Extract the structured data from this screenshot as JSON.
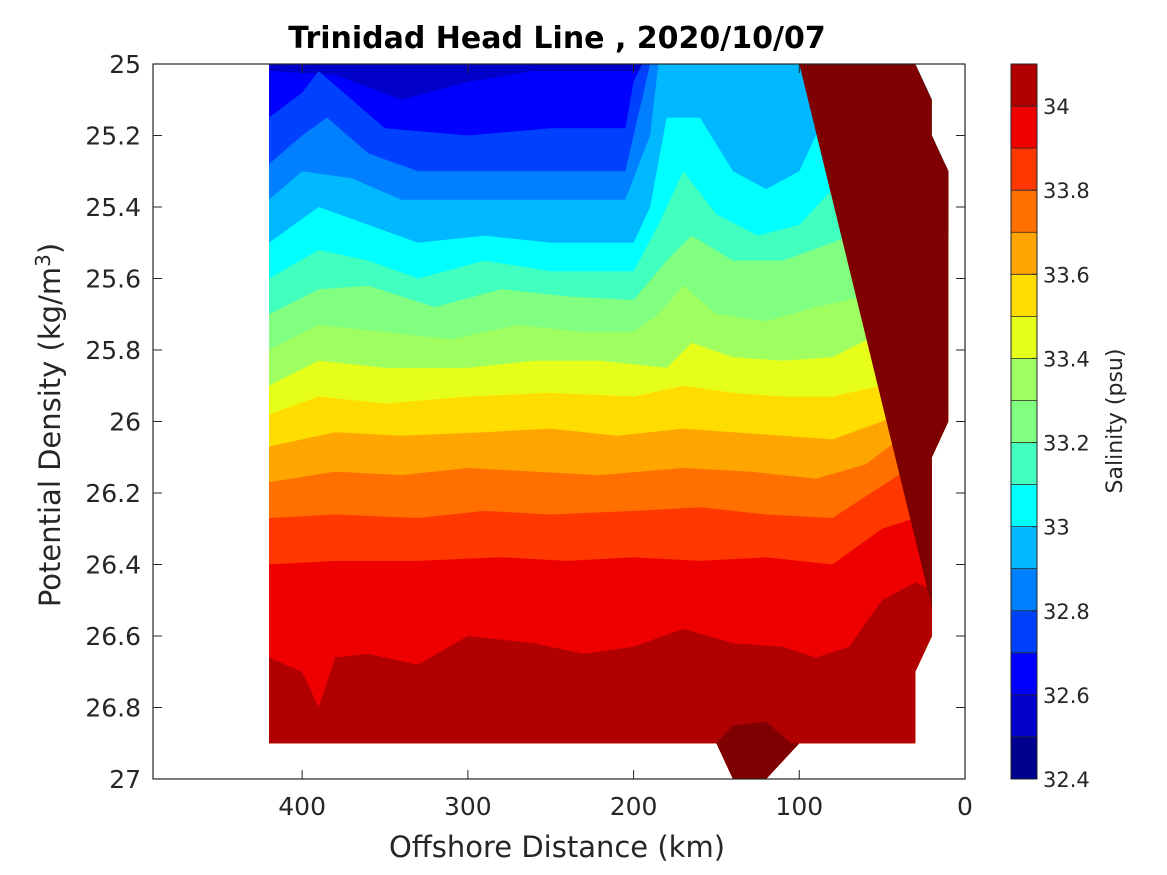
{
  "chart_data": {
    "type": "contour",
    "title": "Trinidad Head Line , 2020/10/07",
    "xlabel": "Offshore Distance (km)",
    "ylabel": "Potential Density (kg/m",
    "ylabel_superscript": "3",
    "ylabel_suffix": ")",
    "xlim": [
      490,
      0
    ],
    "xaxis_reversed": true,
    "ylim": [
      25,
      27
    ],
    "yaxis_reversed": true,
    "x_ticks": [
      400,
      300,
      200,
      100,
      0
    ],
    "x_tick_labels": [
      "400",
      "300",
      "200",
      "100",
      "0"
    ],
    "y_ticks": [
      25,
      25.2,
      25.4,
      25.6,
      25.8,
      26,
      26.2,
      26.4,
      26.6,
      26.8,
      27
    ],
    "y_tick_labels": [
      "25",
      "25.2",
      "25.4",
      "25.6",
      "25.8",
      "26",
      "26.2",
      "26.4",
      "26.6",
      "26.8",
      "27"
    ],
    "grid": false,
    "colorbar": {
      "label": "Salinity (psu)",
      "range": [
        32.4,
        34.1
      ],
      "levels": [
        32.4,
        32.5,
        32.6,
        32.7,
        32.8,
        32.9,
        33.0,
        33.1,
        33.2,
        33.3,
        33.4,
        33.5,
        33.6,
        33.7,
        33.8,
        33.9,
        34.0,
        34.1
      ],
      "colors": [
        "#00008f",
        "#0000c8",
        "#0000ff",
        "#0040ff",
        "#0080ff",
        "#00b8ff",
        "#00ffff",
        "#40ffbf",
        "#80ff80",
        "#a0ff60",
        "#e6ff1a",
        "#ffdd00",
        "#ffa500",
        "#ff7000",
        "#ff3800",
        "#ee0000",
        "#b00000",
        "#7f0000"
      ],
      "tick_values": [
        32.4,
        32.6,
        32.8,
        33,
        33.2,
        33.4,
        33.6,
        33.8,
        34
      ],
      "tick_labels": [
        "32.4",
        "32.6",
        "32.8",
        "33",
        "33.2",
        "33.4",
        "33.6",
        "33.8",
        "34"
      ]
    },
    "data_extent_km": {
      "offshore_edge": 420,
      "shore_edge_top": 30,
      "shore_edge_bottom": 30,
      "max_density": 26.9
    },
    "contour_lines": [
      {
        "level": 32.6,
        "points": [
          [
            420,
            25.02
          ],
          [
            380,
            25.03
          ],
          [
            340,
            25.1
          ],
          [
            300,
            25.05
          ],
          [
            260,
            25.02
          ],
          [
            225,
            25.02
          ]
        ]
      },
      {
        "level": 32.7,
        "points": [
          [
            420,
            25.15
          ],
          [
            400,
            25.08
          ],
          [
            390,
            25.02
          ],
          [
            370,
            25.1
          ],
          [
            350,
            25.18
          ],
          [
            300,
            25.2
          ],
          [
            250,
            25.18
          ],
          [
            205,
            25.18
          ],
          [
            200,
            25.05
          ],
          [
            195,
            25.0
          ]
        ]
      },
      {
        "level": 32.8,
        "points": [
          [
            420,
            25.28
          ],
          [
            400,
            25.2
          ],
          [
            385,
            25.15
          ],
          [
            360,
            25.25
          ],
          [
            330,
            25.3
          ],
          [
            300,
            25.3
          ],
          [
            250,
            25.3
          ],
          [
            205,
            25.3
          ],
          [
            195,
            25.1
          ],
          [
            190,
            25.0
          ]
        ]
      },
      {
        "level": 32.9,
        "points": [
          [
            420,
            25.38
          ],
          [
            400,
            25.3
          ],
          [
            370,
            25.32
          ],
          [
            340,
            25.38
          ],
          [
            300,
            25.38
          ],
          [
            250,
            25.38
          ],
          [
            205,
            25.38
          ],
          [
            190,
            25.2
          ],
          [
            185,
            25.0
          ]
        ]
      },
      {
        "level": 33.0,
        "points": [
          [
            420,
            25.5
          ],
          [
            390,
            25.4
          ],
          [
            360,
            25.45
          ],
          [
            330,
            25.5
          ],
          [
            290,
            25.48
          ],
          [
            250,
            25.5
          ],
          [
            200,
            25.5
          ],
          [
            190,
            25.4
          ],
          [
            180,
            25.15
          ],
          [
            160,
            25.15
          ],
          [
            140,
            25.3
          ],
          [
            120,
            25.35
          ],
          [
            100,
            25.3
          ],
          [
            85,
            25.15
          ],
          [
            70,
            25.25
          ],
          [
            55,
            25.0
          ]
        ]
      },
      {
        "level": 33.1,
        "points": [
          [
            420,
            25.6
          ],
          [
            390,
            25.52
          ],
          [
            360,
            25.55
          ],
          [
            330,
            25.6
          ],
          [
            290,
            25.55
          ],
          [
            250,
            25.58
          ],
          [
            200,
            25.58
          ],
          [
            185,
            25.45
          ],
          [
            170,
            25.3
          ],
          [
            150,
            25.42
          ],
          [
            125,
            25.48
          ],
          [
            100,
            25.45
          ],
          [
            80,
            25.35
          ],
          [
            60,
            25.4
          ],
          [
            45,
            25.3
          ],
          [
            35,
            25.0
          ]
        ]
      },
      {
        "level": 33.2,
        "points": [
          [
            420,
            25.7
          ],
          [
            390,
            25.63
          ],
          [
            360,
            25.62
          ],
          [
            320,
            25.68
          ],
          [
            280,
            25.63
          ],
          [
            240,
            25.65
          ],
          [
            200,
            25.66
          ],
          [
            180,
            25.55
          ],
          [
            165,
            25.48
          ],
          [
            140,
            25.55
          ],
          [
            110,
            25.55
          ],
          [
            80,
            25.5
          ],
          [
            55,
            25.45
          ],
          [
            35,
            25.3
          ],
          [
            25,
            25.1
          ]
        ]
      },
      {
        "level": 33.3,
        "points": [
          [
            420,
            25.8
          ],
          [
            390,
            25.73
          ],
          [
            350,
            25.75
          ],
          [
            310,
            25.77
          ],
          [
            270,
            25.73
          ],
          [
            230,
            25.75
          ],
          [
            200,
            25.75
          ],
          [
            185,
            25.7
          ],
          [
            170,
            25.62
          ],
          [
            150,
            25.7
          ],
          [
            120,
            25.72
          ],
          [
            90,
            25.68
          ],
          [
            60,
            25.65
          ],
          [
            40,
            25.55
          ],
          [
            20,
            25.5
          ]
        ]
      },
      {
        "level": 33.4,
        "points": [
          [
            420,
            25.9
          ],
          [
            390,
            25.83
          ],
          [
            350,
            25.85
          ],
          [
            300,
            25.85
          ],
          [
            260,
            25.83
          ],
          [
            220,
            25.83
          ],
          [
            180,
            25.85
          ],
          [
            165,
            25.78
          ],
          [
            140,
            25.82
          ],
          [
            110,
            25.83
          ],
          [
            80,
            25.82
          ],
          [
            50,
            25.75
          ],
          [
            30,
            25.7
          ],
          [
            15,
            25.6
          ]
        ]
      },
      {
        "level": 33.5,
        "points": [
          [
            420,
            25.98
          ],
          [
            390,
            25.93
          ],
          [
            350,
            25.95
          ],
          [
            300,
            25.93
          ],
          [
            250,
            25.92
          ],
          [
            200,
            25.93
          ],
          [
            170,
            25.9
          ],
          [
            140,
            25.92
          ],
          [
            110,
            25.93
          ],
          [
            80,
            25.93
          ],
          [
            50,
            25.9
          ],
          [
            30,
            25.82
          ],
          [
            15,
            25.8
          ]
        ]
      },
      {
        "level": 33.6,
        "points": [
          [
            420,
            26.07
          ],
          [
            380,
            26.03
          ],
          [
            340,
            26.04
          ],
          [
            290,
            26.03
          ],
          [
            250,
            26.02
          ],
          [
            210,
            26.04
          ],
          [
            170,
            26.02
          ],
          [
            140,
            26.03
          ],
          [
            110,
            26.04
          ],
          [
            80,
            26.05
          ],
          [
            50,
            26.0
          ],
          [
            30,
            25.95
          ],
          [
            15,
            25.95
          ]
        ]
      },
      {
        "level": 33.7,
        "points": [
          [
            420,
            26.17
          ],
          [
            380,
            26.14
          ],
          [
            340,
            26.15
          ],
          [
            300,
            26.13
          ],
          [
            260,
            26.14
          ],
          [
            220,
            26.15
          ],
          [
            170,
            26.13
          ],
          [
            130,
            26.14
          ],
          [
            90,
            26.16
          ],
          [
            60,
            26.12
          ],
          [
            40,
            26.05
          ],
          [
            15,
            26.03
          ]
        ]
      },
      {
        "level": 33.8,
        "points": [
          [
            420,
            26.27
          ],
          [
            380,
            26.26
          ],
          [
            330,
            26.27
          ],
          [
            290,
            26.25
          ],
          [
            250,
            26.26
          ],
          [
            200,
            26.25
          ],
          [
            160,
            26.24
          ],
          [
            120,
            26.26
          ],
          [
            80,
            26.27
          ],
          [
            50,
            26.18
          ],
          [
            30,
            26.12
          ],
          [
            20,
            26.12
          ]
        ]
      },
      {
        "level": 33.9,
        "points": [
          [
            420,
            26.4
          ],
          [
            380,
            26.39
          ],
          [
            330,
            26.39
          ],
          [
            280,
            26.38
          ],
          [
            240,
            26.39
          ],
          [
            200,
            26.38
          ],
          [
            160,
            26.39
          ],
          [
            120,
            26.38
          ],
          [
            80,
            26.4
          ],
          [
            50,
            26.3
          ],
          [
            30,
            26.27
          ],
          [
            20,
            26.27
          ]
        ]
      },
      {
        "level": 34.0,
        "points": [
          [
            420,
            26.66
          ],
          [
            400,
            26.7
          ],
          [
            390,
            26.8
          ],
          [
            380,
            26.66
          ],
          [
            360,
            26.65
          ],
          [
            330,
            26.68
          ],
          [
            300,
            26.6
          ],
          [
            260,
            26.62
          ],
          [
            230,
            26.65
          ],
          [
            200,
            26.63
          ],
          [
            170,
            26.58
          ],
          [
            140,
            26.62
          ],
          [
            110,
            26.63
          ],
          [
            90,
            26.66
          ],
          [
            70,
            26.63
          ],
          [
            50,
            26.5
          ],
          [
            30,
            26.45
          ],
          [
            20,
            26.47
          ]
        ]
      },
      {
        "level": 34.1,
        "points": [
          [
            150,
            26.9
          ],
          [
            140,
            26.85
          ],
          [
            120,
            26.84
          ],
          [
            105,
            26.9
          ]
        ]
      }
    ]
  }
}
